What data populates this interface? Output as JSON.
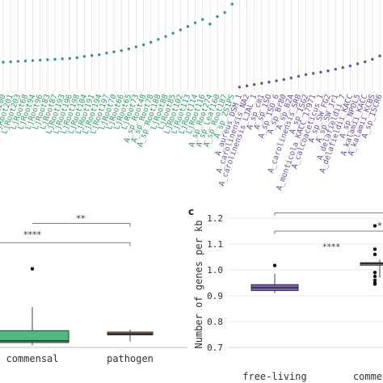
{
  "colors": {
    "commensal": "#2e9e6a",
    "commensal_fill": "#4fb780",
    "freeliving": "#6a4fae",
    "freeliving_fill": "#7b60c0",
    "pathogen_fill": "#c0653a",
    "grid": "#e0e0e0",
    "axis_text": "#333333"
  },
  "chart_data": [
    {
      "type": "scatter",
      "panel": "top (cropped)",
      "title": "",
      "xlabel": "",
      "ylabel": "",
      "grid": true,
      "series": [
        {
          "group": "commensal",
          "labels": [
            "LjRoot200",
            "LjRoot201",
            "LjRoot203",
            "LjRoot68",
            "LjRoot94",
            "LjRoot96",
            "LjRoot83",
            "LjRoot87",
            "LjRoot193",
            "LjRoot196",
            "LjRoot198",
            "LjRoot104",
            "LjRoot191",
            "LjRoot194",
            "LjRoot197",
            "LjRoot70",
            "LjRoot66",
            "LjRoot65",
            "LjRoot73",
            "A_sp_Root48",
            "A_sp_Root78",
            "A_sp_Root188",
            "LjRoot88",
            "LjRoot85",
            "LjRoot102",
            "LjRoot113",
            "LjRoot114",
            "LjRoot116",
            "A_sp_Root274",
            "A_sp_Leaf160",
            "A_sp_Root187",
            "A_sp_ZS1PS"
          ],
          "values": [
            0.93,
            0.931,
            0.932,
            0.933,
            0.934,
            0.935,
            0.936,
            0.937,
            0.938,
            0.939,
            0.941,
            0.944,
            0.946,
            0.948,
            0.952,
            0.955,
            0.958,
            0.962,
            0.967,
            0.972,
            0.978,
            0.985,
            0.992,
            1.0,
            1.008,
            1.016,
            1.025,
            1.033,
            1.022,
            1.04,
            1.05,
            1.07
          ]
        },
        {
          "group": "free-living",
          "labels": [
            "A_aureus_DSM_1",
            "A_carolinensis_NA2",
            "A_carolinensis_LJAL_1",
            "A_sp_cm1",
            "A_sp_1SO",
            "A_sp_1SO_6",
            "A_sp_Br80",
            "A_sp_B2A",
            "A_carolinensis_SR8",
            "A_sp_ISG2",
            "A_monticola_KACC_17971",
            "A_calcoaceticus_1",
            "A_sp_SW_FG2",
            "A_sp_SW_Jr1",
            "A_delafieldii_7",
            "A_delafieldii_KACC",
            "A_sp_NPDL5",
            "A_kalamii_KACC",
            "A_kalamii_KCBS",
            "A_sp_ISCR6"
          ],
          "values": [
            0.87,
            0.873,
            0.876,
            0.879,
            0.882,
            0.885,
            0.888,
            0.892,
            0.896,
            0.9,
            0.903,
            0.906,
            0.909,
            0.913,
            0.917,
            0.921,
            0.926,
            0.931,
            0.937,
            0.945
          ]
        }
      ],
      "ylim": [
        0.85,
        1.08
      ]
    },
    {
      "type": "box",
      "panel": "b (cropped)",
      "title": "",
      "xlabel": "",
      "ylabel": "",
      "categories": [
        "commensal",
        "pathogen"
      ],
      "boxes": [
        {
          "name": "commensal",
          "whisker_low": 0.906,
          "q1": 0.914,
          "median": 0.919,
          "q3": 0.948,
          "whisker_high": 1.015,
          "outliers": [
            1.125
          ]
        },
        {
          "name": "pathogen",
          "whisker_low": 0.917,
          "q1": 0.936,
          "median": 0.939,
          "q3": 0.944,
          "whisker_high": 0.951,
          "outliers": []
        }
      ],
      "significance": [
        {
          "label": "**",
          "from": "pathogen",
          "to": "pathogen"
        },
        {
          "label": "****",
          "from": "commensal",
          "to": "pathogen"
        }
      ],
      "ylim": [
        0.9,
        1.27
      ]
    },
    {
      "type": "box",
      "panel": "c",
      "panel_label": "c",
      "title": "",
      "xlabel": "",
      "ylabel": "Number of genes per kb",
      "ylim": [
        0.7,
        1.25
      ],
      "yticks": [
        "0.7",
        "0.8",
        "0.9",
        "1.0",
        "1.1",
        "1.2"
      ],
      "categories": [
        "free-living",
        "comme"
      ],
      "boxes": [
        {
          "name": "free-living",
          "whisker_low": 0.91,
          "q1": 0.92,
          "median": 0.931,
          "q3": 0.943,
          "whisker_high": 0.985,
          "outliers": [
            1.017
          ]
        },
        {
          "name": "commensal",
          "whisker_low": 0.97,
          "q1": 1.018,
          "median": 1.024,
          "q3": 1.028,
          "whisker_high": 1.04,
          "outliers": [
            1.17,
            1.08,
            1.06,
            0.99,
            0.975,
            0.96,
            0.95,
            0.945
          ]
        }
      ],
      "significance": [
        {
          "label": "****",
          "from": "free-living",
          "to": "commensal",
          "y": 1.15
        },
        {
          "label": "*",
          "from": "free-living",
          "to": "commensal",
          "y": 1.23
        }
      ]
    }
  ],
  "labels": {
    "b_x_commensal": "commensal",
    "b_x_pathogen": "pathogen",
    "b_sig_1": "**",
    "b_sig_2": "****",
    "c_panel": "c",
    "c_ylabel": "Number of genes per kb",
    "c_x_freeliving": "free-living",
    "c_x_commensal": "comme",
    "c_sig_1": "****",
    "c_sig_2": "*"
  }
}
